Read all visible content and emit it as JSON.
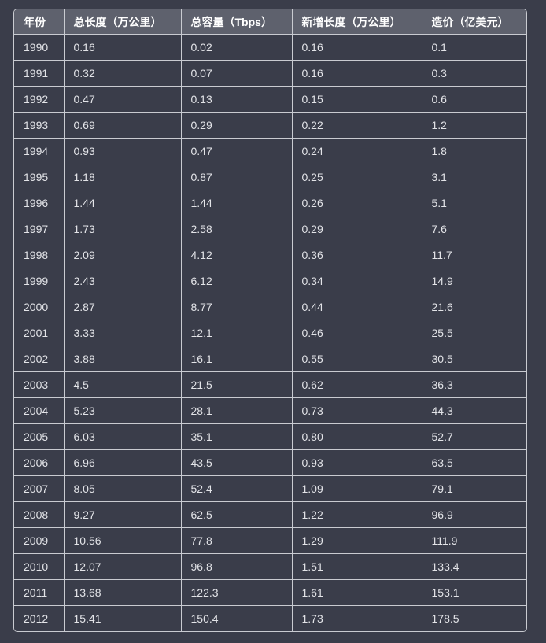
{
  "table": {
    "headers": [
      "年份",
      "总长度（万公里）",
      "总容量（Tbps）",
      "新增长度（万公里）",
      "造价（亿美元）"
    ],
    "rows": [
      [
        "1990",
        "0.16",
        "0.02",
        "0.16",
        "0.1"
      ],
      [
        "1991",
        "0.32",
        "0.07",
        "0.16",
        "0.3"
      ],
      [
        "1992",
        "0.47",
        "0.13",
        "0.15",
        "0.6"
      ],
      [
        "1993",
        "0.69",
        "0.29",
        "0.22",
        "1.2"
      ],
      [
        "1994",
        "0.93",
        "0.47",
        "0.24",
        "1.8"
      ],
      [
        "1995",
        "1.18",
        "0.87",
        "0.25",
        "3.1"
      ],
      [
        "1996",
        "1.44",
        "1.44",
        "0.26",
        "5.1"
      ],
      [
        "1997",
        "1.73",
        "2.58",
        "0.29",
        "7.6"
      ],
      [
        "1998",
        "2.09",
        "4.12",
        "0.36",
        "11.7"
      ],
      [
        "1999",
        "2.43",
        "6.12",
        "0.34",
        "14.9"
      ],
      [
        "2000",
        "2.87",
        "8.77",
        "0.44",
        "21.6"
      ],
      [
        "2001",
        "3.33",
        "12.1",
        "0.46",
        "25.5"
      ],
      [
        "2002",
        "3.88",
        "16.1",
        "0.55",
        "30.5"
      ],
      [
        "2003",
        "4.5",
        "21.5",
        "0.62",
        "36.3"
      ],
      [
        "2004",
        "5.23",
        "28.1",
        "0.73",
        "44.3"
      ],
      [
        "2005",
        "6.03",
        "35.1",
        "0.80",
        "52.7"
      ],
      [
        "2006",
        "6.96",
        "43.5",
        "0.93",
        "63.5"
      ],
      [
        "2007",
        "8.05",
        "52.4",
        "1.09",
        "79.1"
      ],
      [
        "2008",
        "9.27",
        "62.5",
        "1.22",
        "96.9"
      ],
      [
        "2009",
        "10.56",
        "77.8",
        "1.29",
        "111.9"
      ],
      [
        "2010",
        "12.07",
        "96.8",
        "1.51",
        "133.4"
      ],
      [
        "2011",
        "13.68",
        "122.3",
        "1.61",
        "153.1"
      ],
      [
        "2012",
        "15.41",
        "150.4",
        "1.73",
        "178.5"
      ]
    ]
  },
  "colors": {
    "background": "#3a3d4a",
    "header_background": "#5e616d",
    "border": "#c9cbd1",
    "text": "#e3e4e8"
  }
}
